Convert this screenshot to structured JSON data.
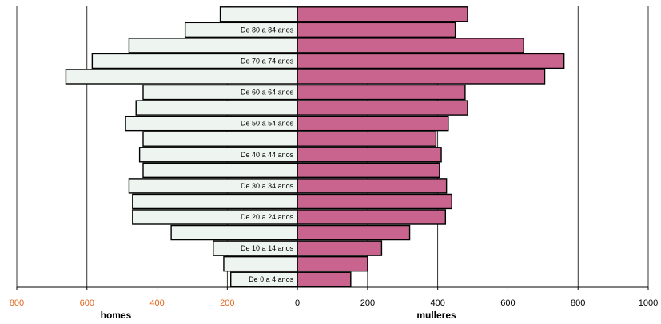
{
  "chart_data": {
    "type": "bar",
    "orientation": "horizontal-population-pyramid",
    "categories": [
      "",
      "De 80 a 84 anos",
      "",
      "De 70 a 74 anos",
      "",
      "De 60 a 64 anos",
      "",
      "De 50 a 54 anos",
      "",
      "De 40 a 44 anos",
      "",
      "De 30 a 34 anos",
      "",
      "De 20 a 24 anos",
      "",
      "De 10 a 14 anos",
      "",
      "De 0 a 4 anos"
    ],
    "series": [
      {
        "name": "homes",
        "values": [
          220,
          320,
          480,
          585,
          660,
          440,
          460,
          490,
          440,
          450,
          440,
          480,
          470,
          470,
          360,
          240,
          210,
          190
        ],
        "color": "#eef4ef"
      },
      {
        "name": "mulleres",
        "values": [
          485,
          450,
          645,
          760,
          705,
          478,
          485,
          430,
          395,
          410,
          405,
          425,
          440,
          422,
          320,
          240,
          200,
          152
        ],
        "color": "#c8648e"
      }
    ],
    "xlim": [
      -800,
      1000
    ],
    "xticks": [
      "800",
      "600",
      "400",
      "200",
      "0",
      "200",
      "400",
      "600",
      "800",
      "1000"
    ],
    "xticks_left_color": "#e0681e",
    "grid": true,
    "left_label": "homes",
    "right_label": "mulleres"
  }
}
